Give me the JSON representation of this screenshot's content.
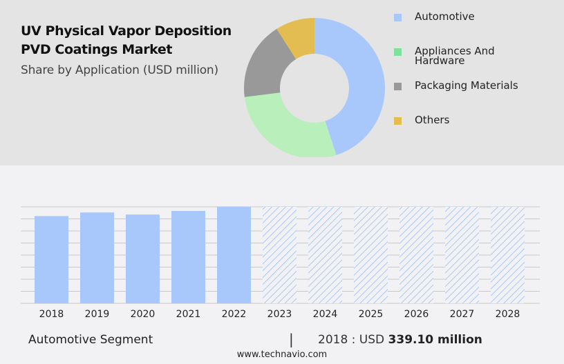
{
  "header": {
    "title_line1": "UV Physical Vapor Deposition",
    "title_line2": "PVD Coatings Market",
    "subtitle": "Share by Application (USD million)"
  },
  "legend": [
    {
      "label": "Automotive",
      "color": "#a8c8fc"
    },
    {
      "label": "Appliances And Hardware",
      "color": "#7ee29b"
    },
    {
      "label": "Packaging Materials",
      "color": "#999999"
    },
    {
      "label": "Others",
      "color": "#e4bd52"
    }
  ],
  "footer": {
    "segment": "Automotive Segment",
    "separator": "|",
    "year_label": "2018 : USD ",
    "value": "339.10 million",
    "url": "www.technavio.com"
  },
  "chart_data": [
    {
      "type": "pie",
      "subtype": "donut",
      "title": "Share by Application (USD million)",
      "categories": [
        "Automotive",
        "Appliances And Hardware",
        "Packaging Materials",
        "Others"
      ],
      "values": [
        45,
        28,
        18,
        9
      ],
      "colors": [
        "#a8c8fc",
        "#b8efbb",
        "#999999",
        "#e4bd52"
      ]
    },
    {
      "type": "bar",
      "title": "Automotive Segment",
      "categories": [
        "2018",
        "2019",
        "2020",
        "2021",
        "2022",
        "2023",
        "2024",
        "2025",
        "2026",
        "2027",
        "2028"
      ],
      "values": [
        339.1,
        353,
        345,
        359,
        375,
        null,
        null,
        null,
        null,
        null,
        null
      ],
      "forecast": [
        false,
        false,
        false,
        false,
        false,
        true,
        true,
        true,
        true,
        true,
        true
      ],
      "xlabel": "",
      "ylabel": "",
      "grid": true,
      "gridlines": 8,
      "ylim": [
        0,
        375
      ],
      "bar_color": "#a8c8fc"
    }
  ]
}
